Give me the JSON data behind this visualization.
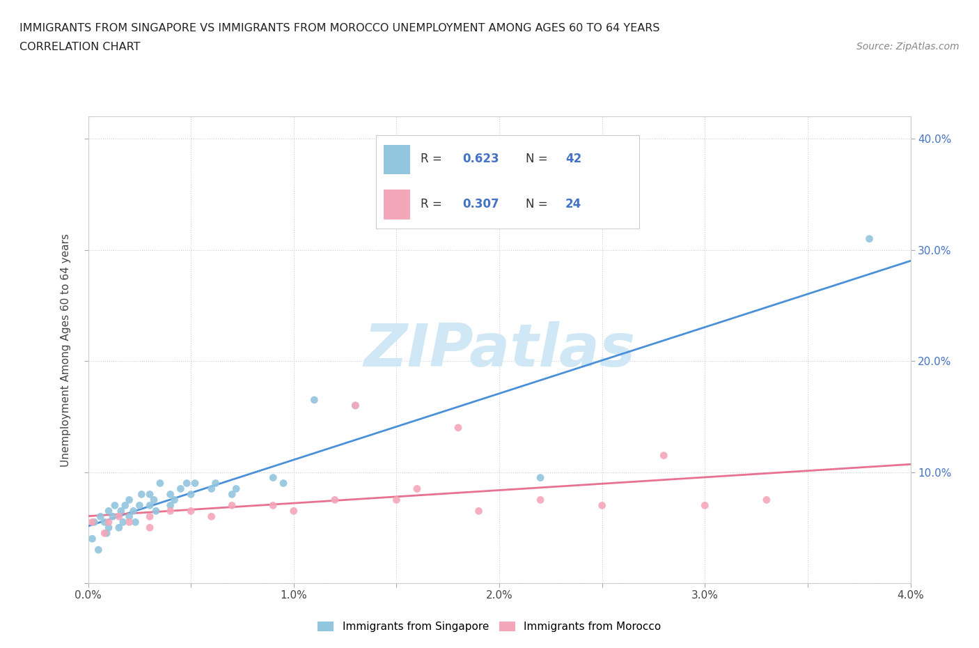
{
  "title_line1": "IMMIGRANTS FROM SINGAPORE VS IMMIGRANTS FROM MOROCCO UNEMPLOYMENT AMONG AGES 60 TO 64 YEARS",
  "title_line2": "CORRELATION CHART",
  "source_text": "Source: ZipAtlas.com",
  "ylabel": "Unemployment Among Ages 60 to 64 years",
  "xlim": [
    0.0,
    0.04
  ],
  "ylim": [
    0.0,
    0.42
  ],
  "x_ticks": [
    0.0,
    0.005,
    0.01,
    0.015,
    0.02,
    0.025,
    0.03,
    0.035,
    0.04
  ],
  "x_tick_labels": [
    "0.0%",
    "",
    "1.0%",
    "",
    "2.0%",
    "",
    "3.0%",
    "",
    "4.0%"
  ],
  "y_ticks_left": [
    0.0,
    0.1,
    0.2,
    0.3,
    0.4
  ],
  "y_tick_labels_left": [
    "",
    "",
    "",
    "",
    ""
  ],
  "y_ticks_right": [
    0.1,
    0.2,
    0.3,
    0.4
  ],
  "y_tick_labels_right": [
    "10.0%",
    "20.0%",
    "30.0%",
    "40.0%"
  ],
  "color_singapore": "#92c5de",
  "color_morocco": "#f4a7b9",
  "line_color_singapore": "#4a90d9",
  "line_color_morocco": "#e87090",
  "R_singapore": 0.623,
  "N_singapore": 42,
  "R_morocco": 0.307,
  "N_morocco": 24,
  "watermark_text": "ZIPatlas",
  "watermark_color": "#d0e8f5",
  "legend_R_color": "#4472c4",
  "legend_N_color": "#4472c4",
  "singapore_x": [
    0.0002,
    0.0003,
    0.0005,
    0.0006,
    0.0008,
    0.0009,
    0.001,
    0.001,
    0.0012,
    0.0013,
    0.0015,
    0.0016,
    0.0017,
    0.0018,
    0.002,
    0.002,
    0.0022,
    0.0023,
    0.0025,
    0.0026,
    0.003,
    0.003,
    0.0032,
    0.0033,
    0.0035,
    0.004,
    0.004,
    0.0042,
    0.0045,
    0.0048,
    0.005,
    0.0052,
    0.006,
    0.0062,
    0.007,
    0.0072,
    0.009,
    0.0095,
    0.011,
    0.013,
    0.022,
    0.038
  ],
  "singapore_y": [
    0.04,
    0.055,
    0.03,
    0.06,
    0.055,
    0.045,
    0.065,
    0.05,
    0.06,
    0.07,
    0.05,
    0.065,
    0.055,
    0.07,
    0.06,
    0.075,
    0.065,
    0.055,
    0.07,
    0.08,
    0.07,
    0.08,
    0.075,
    0.065,
    0.09,
    0.07,
    0.08,
    0.075,
    0.085,
    0.09,
    0.08,
    0.09,
    0.085,
    0.09,
    0.08,
    0.085,
    0.095,
    0.09,
    0.165,
    0.16,
    0.095,
    0.31
  ],
  "morocco_x": [
    0.0002,
    0.0008,
    0.001,
    0.0015,
    0.002,
    0.003,
    0.003,
    0.004,
    0.005,
    0.006,
    0.007,
    0.009,
    0.01,
    0.012,
    0.013,
    0.015,
    0.016,
    0.018,
    0.019,
    0.022,
    0.025,
    0.028,
    0.03,
    0.033
  ],
  "morocco_y": [
    0.055,
    0.045,
    0.055,
    0.06,
    0.055,
    0.06,
    0.05,
    0.065,
    0.065,
    0.06,
    0.07,
    0.07,
    0.065,
    0.075,
    0.16,
    0.075,
    0.085,
    0.14,
    0.065,
    0.075,
    0.07,
    0.115,
    0.07,
    0.075
  ]
}
